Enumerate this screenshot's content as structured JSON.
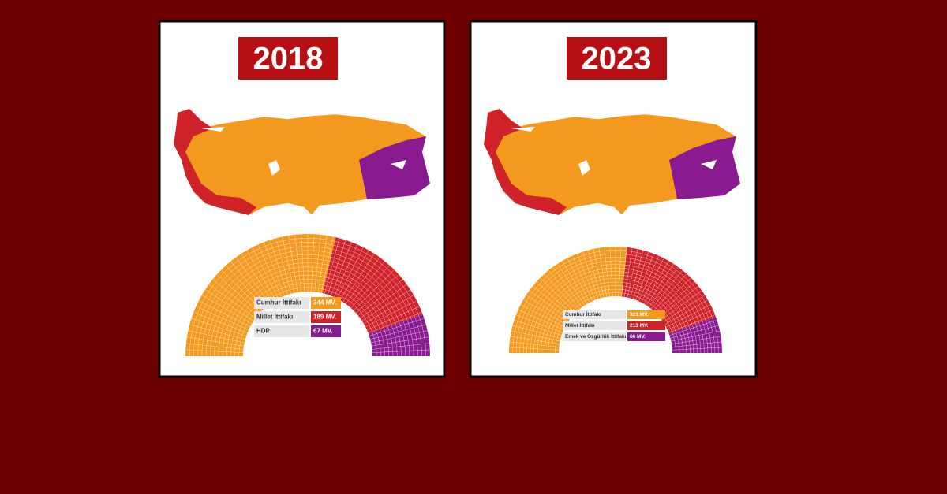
{
  "chart_data": [
    {
      "type": "parliament",
      "title": "2018",
      "categories": [
        "Cumhur İttifakı",
        "Millet İttifakı",
        "HDP"
      ],
      "values": [
        344,
        189,
        67
      ],
      "value_labels": [
        "344 MV.",
        "189 MV.",
        "67 MV."
      ],
      "colors": [
        "#f39a1e",
        "#cf2229",
        "#8a1a8f"
      ]
    },
    {
      "type": "parliament",
      "title": "2023",
      "categories": [
        "Cumhur İttifakı",
        "Millet İttifakı",
        "Emek ve Özgürlük İttifakı"
      ],
      "values": [
        321,
        213,
        66
      ],
      "value_labels": [
        "321 MV.",
        "213 MV.",
        "66 MV."
      ],
      "colors": [
        "#f39a1e",
        "#cf2229",
        "#8a1a8f"
      ]
    }
  ]
}
